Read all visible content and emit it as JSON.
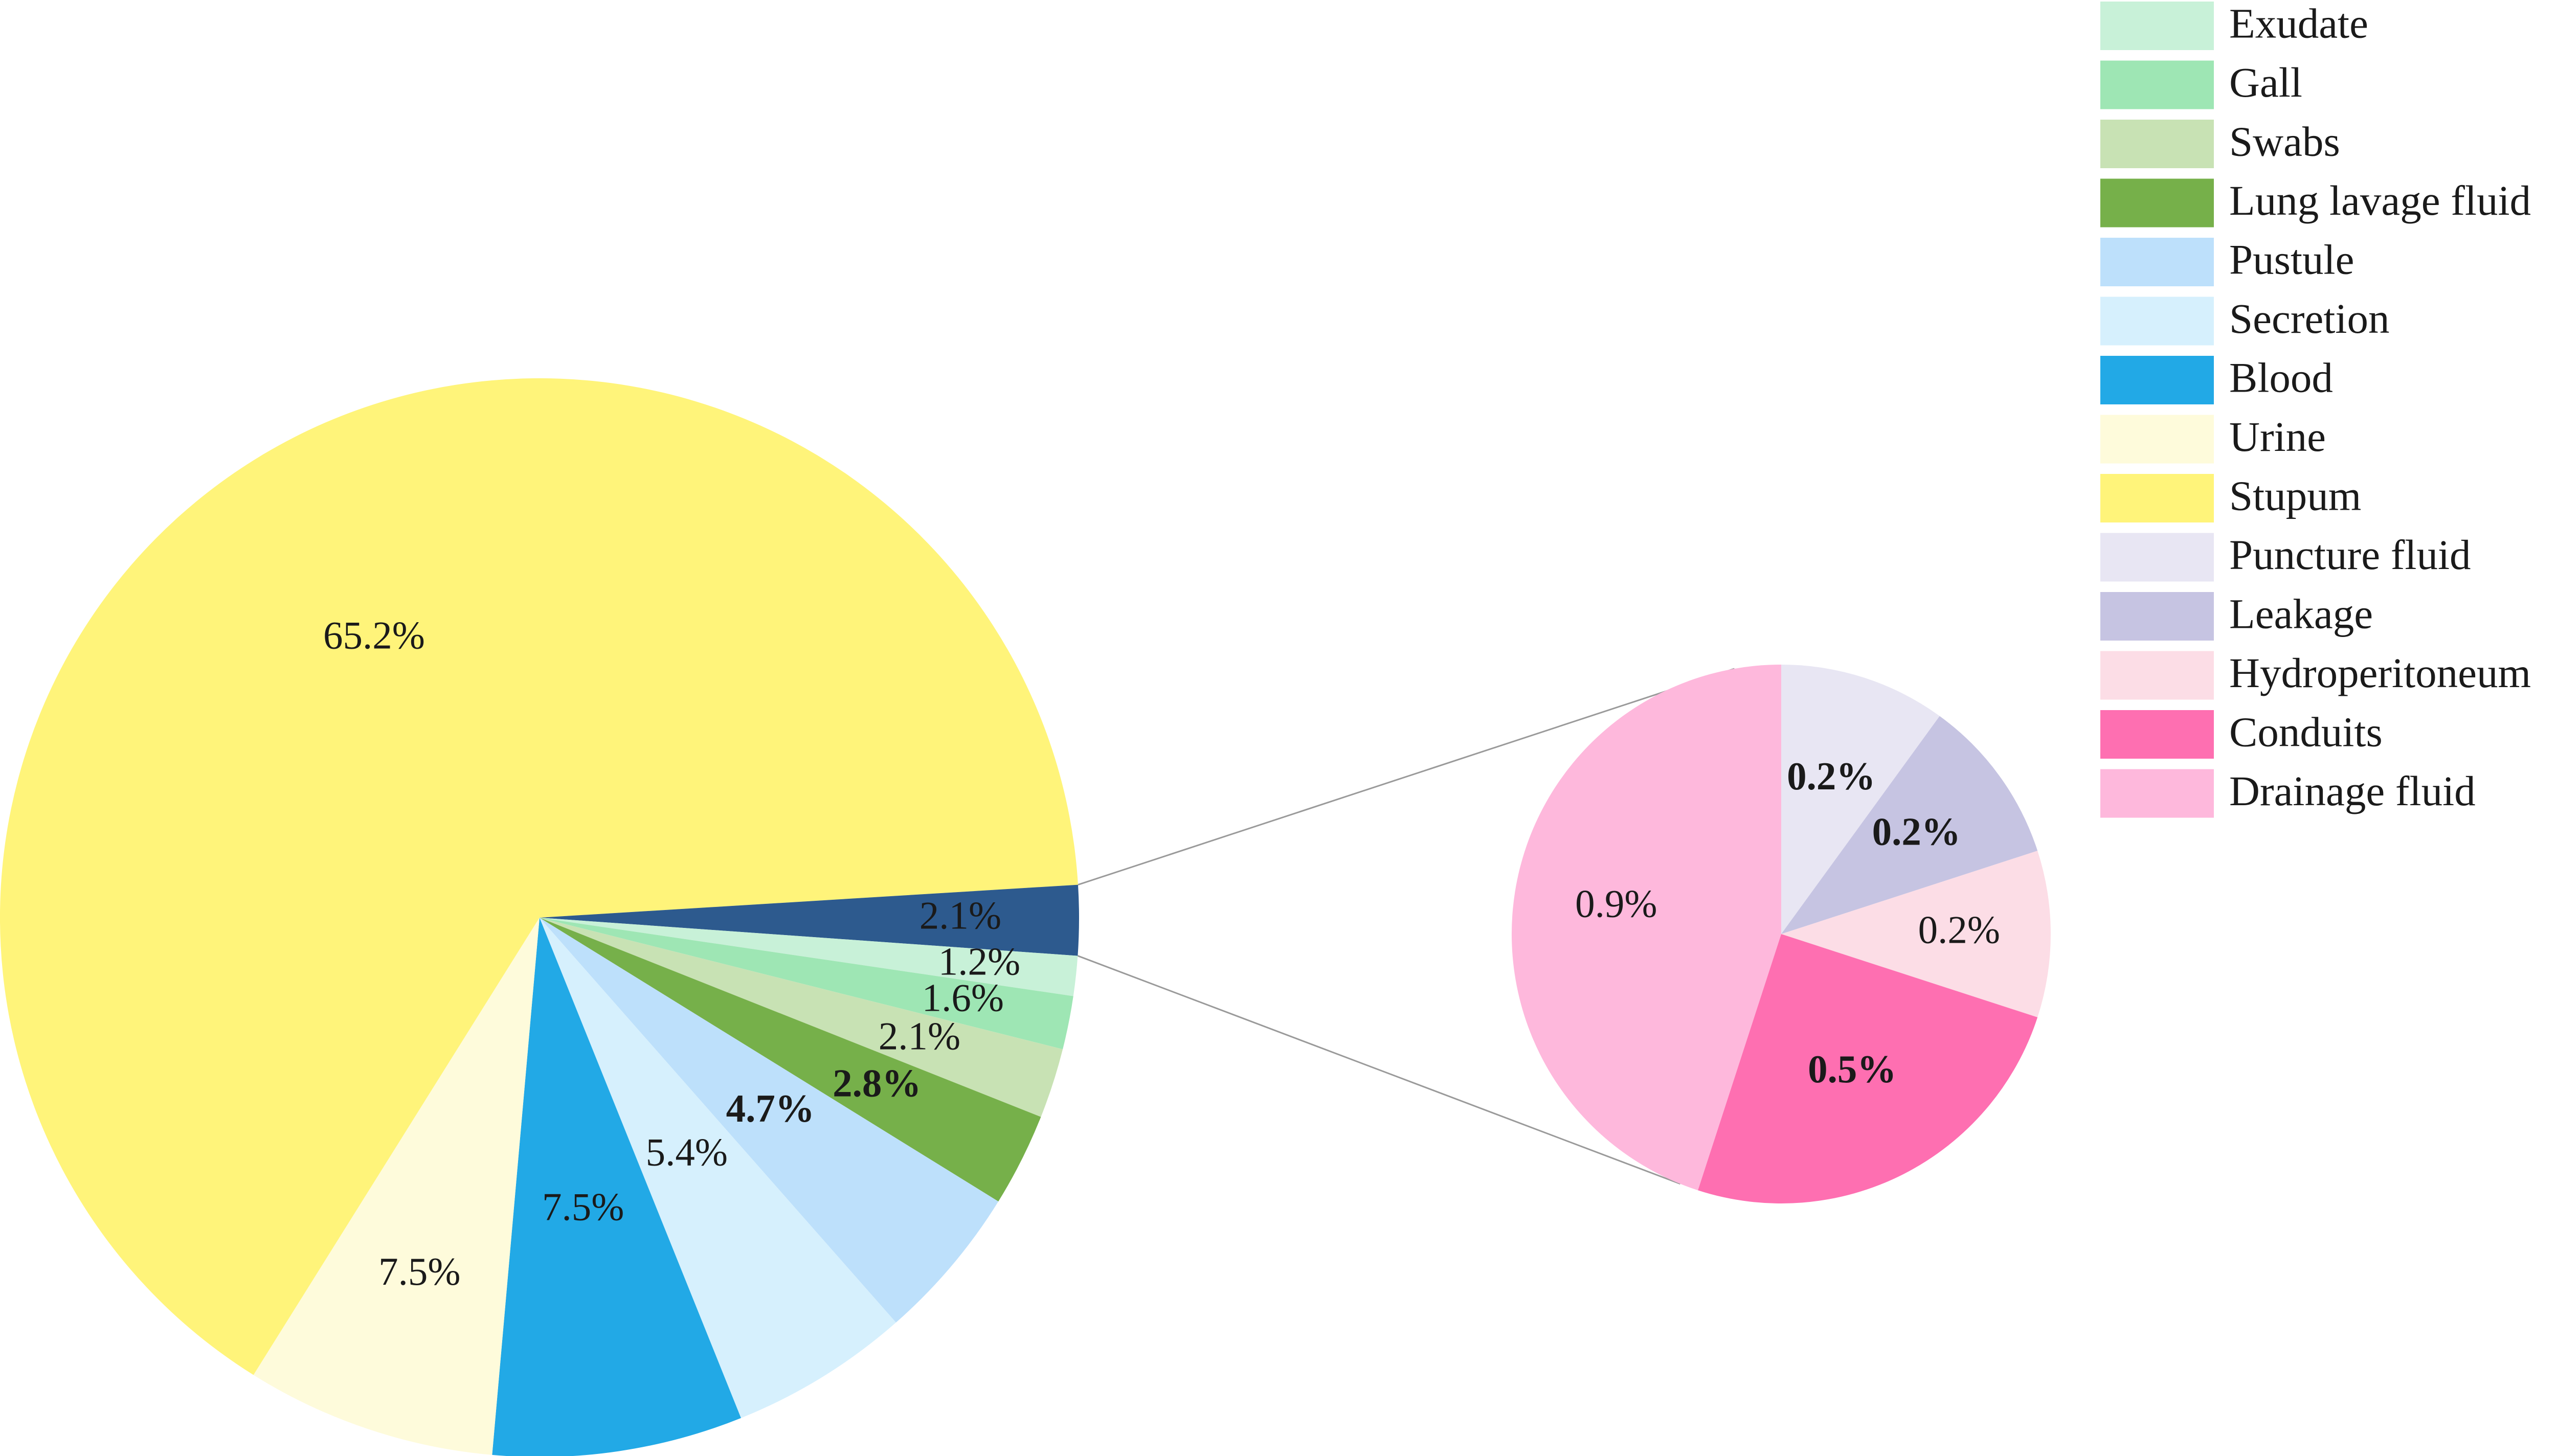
{
  "chart_data": {
    "type": "pie",
    "main_pie": {
      "slices": [
        {
          "name": "Stupum",
          "value": 65.2,
          "label": "65.2%",
          "color": "#fff47a"
        },
        {
          "name": "",
          "value": 2.1,
          "label": "2.1%",
          "color": "#2d5a8e"
        },
        {
          "name": "Exudate",
          "value": 1.2,
          "label": "1.2%",
          "color": "#c8f1d8"
        },
        {
          "name": "Gall",
          "value": 1.6,
          "label": "1.6%",
          "color": "#9ee6b4"
        },
        {
          "name": "Swabs",
          "value": 2.1,
          "label": "2.1%",
          "color": "#c8e2b4"
        },
        {
          "name": "Lung lavage fluid",
          "value": 2.8,
          "label": "2.8%",
          "color": "#76b04a"
        },
        {
          "name": "Pustule",
          "value": 4.7,
          "label": "4.7%",
          "color": "#bde0fb"
        },
        {
          "name": "Secretion",
          "value": 5.4,
          "label": "5.4%",
          "color": "#d6f0fd"
        },
        {
          "name": "Blood",
          "value": 7.5,
          "label": "7.5%",
          "color": "#22a9e6"
        },
        {
          "name": "Urine",
          "value": 7.5,
          "label": "7.5%",
          "color": "#fefbdb"
        }
      ]
    },
    "sub_pie": {
      "slices": [
        {
          "name": "Puncture fluid",
          "value": 0.2,
          "label": "0.2%",
          "color": "#e8e6f3"
        },
        {
          "name": "Leakage",
          "value": 0.2,
          "label": "0.2%",
          "color": "#c6c4e2"
        },
        {
          "name": "Hydroperitoneum",
          "value": 0.2,
          "label": "0.2%",
          "color": "#fcdde6"
        },
        {
          "name": "Conduits",
          "value": 0.5,
          "label": "0.5%",
          "color": "#fe6fb1"
        },
        {
          "name": "Drainage fluid",
          "value": 0.9,
          "label": "0.9%",
          "color": "#feb8dc"
        }
      ]
    },
    "legend": {
      "placement": "top-right",
      "items": [
        {
          "label": "Exudate",
          "color": "#c8f1d8"
        },
        {
          "label": "Gall",
          "color": "#9ee6b4"
        },
        {
          "label": "Swabs",
          "color": "#c8e2b4"
        },
        {
          "label": "Lung lavage fluid",
          "color": "#76b04a"
        },
        {
          "label": "Pustule",
          "color": "#bde0fb"
        },
        {
          "label": "Secretion",
          "color": "#d6f0fd"
        },
        {
          "label": "Blood",
          "color": "#22a9e6"
        },
        {
          "label": "Urine",
          "color": "#fefbdb"
        },
        {
          "label": "Stupum",
          "color": "#fff47a"
        },
        {
          "label": "Puncture fluid",
          "color": "#e8e6f3"
        },
        {
          "label": "Leakage",
          "color": "#c6c4e2"
        },
        {
          "label": "Hydroperitoneum",
          "color": "#fcdde6"
        },
        {
          "label": "Conduits",
          "color": "#fe6fb1"
        },
        {
          "label": "Drainage fluid",
          "color": "#feb8dc"
        }
      ]
    }
  }
}
